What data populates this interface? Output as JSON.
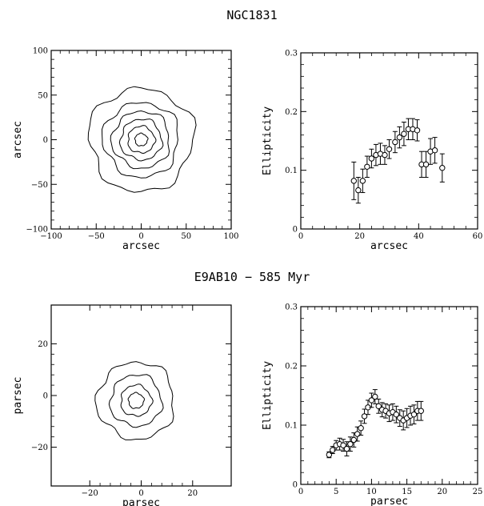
{
  "top_title": "NGC1831",
  "bottom_title": "E9AB10 − 585 Myr",
  "chart_data": [
    {
      "type": "contour",
      "xlabel": "arcsec",
      "ylabel": "arcsec",
      "xlim": [
        -100,
        100
      ],
      "ylim": [
        -100,
        100
      ],
      "xticks": [
        -100,
        -50,
        0,
        50,
        100
      ],
      "yticks": [
        -100,
        -50,
        0,
        50,
        100
      ],
      "center": [
        0,
        0
      ],
      "levels": [
        {
          "r": 7
        },
        {
          "r": 15
        },
        {
          "r": 23
        },
        {
          "r": 32
        },
        {
          "r": 42
        },
        {
          "r": 58
        }
      ]
    },
    {
      "type": "scatter",
      "xlabel": "arcsec",
      "ylabel": "Ellipticity",
      "xlim": [
        0,
        60
      ],
      "ylim": [
        0,
        0.3
      ],
      "xticks": [
        0,
        20,
        40,
        60
      ],
      "yticks": [
        0,
        0.1,
        0.2,
        0.3
      ],
      "points": [
        {
          "x": 18.0,
          "y": 0.082,
          "err": 0.032
        },
        {
          "x": 19.5,
          "y": 0.066,
          "err": 0.022
        },
        {
          "x": 21.0,
          "y": 0.082,
          "err": 0.02
        },
        {
          "x": 22.5,
          "y": 0.106,
          "err": 0.018
        },
        {
          "x": 24.0,
          "y": 0.12,
          "err": 0.016
        },
        {
          "x": 25.5,
          "y": 0.126,
          "err": 0.018
        },
        {
          "x": 27.0,
          "y": 0.128,
          "err": 0.018
        },
        {
          "x": 28.5,
          "y": 0.126,
          "err": 0.016
        },
        {
          "x": 30.0,
          "y": 0.136,
          "err": 0.016
        },
        {
          "x": 32.0,
          "y": 0.148,
          "err": 0.018
        },
        {
          "x": 33.5,
          "y": 0.156,
          "err": 0.018
        },
        {
          "x": 35.0,
          "y": 0.162,
          "err": 0.02
        },
        {
          "x": 36.5,
          "y": 0.17,
          "err": 0.018
        },
        {
          "x": 38.0,
          "y": 0.17,
          "err": 0.018
        },
        {
          "x": 39.5,
          "y": 0.168,
          "err": 0.018
        },
        {
          "x": 41.0,
          "y": 0.11,
          "err": 0.022
        },
        {
          "x": 42.5,
          "y": 0.11,
          "err": 0.022
        },
        {
          "x": 44.0,
          "y": 0.132,
          "err": 0.022
        },
        {
          "x": 45.5,
          "y": 0.134,
          "err": 0.022
        },
        {
          "x": 48.0,
          "y": 0.104,
          "err": 0.024
        }
      ]
    },
    {
      "type": "contour",
      "xlabel": "parsec",
      "ylabel": "parsec",
      "xlim": [
        -35,
        35
      ],
      "ylim": [
        -35,
        35
      ],
      "xticks": [
        -20,
        0,
        20
      ],
      "yticks": [
        -20,
        0,
        20
      ],
      "center": [
        -2,
        -2
      ],
      "levels": [
        {
          "r": 3
        },
        {
          "r": 6
        },
        {
          "r": 10
        },
        {
          "r": 15
        }
      ]
    },
    {
      "type": "scatter",
      "xlabel": "parsec",
      "ylabel": "Ellipticity",
      "xlim": [
        0,
        25
      ],
      "ylim": [
        0,
        0.3
      ],
      "xticks": [
        0,
        5,
        10,
        15,
        20,
        25
      ],
      "yticks": [
        0,
        0.1,
        0.2,
        0.3
      ],
      "points": [
        {
          "x": 4.0,
          "y": 0.05,
          "err": 0.005
        },
        {
          "x": 4.5,
          "y": 0.058,
          "err": 0.006
        },
        {
          "x": 5.0,
          "y": 0.066,
          "err": 0.008
        },
        {
          "x": 5.5,
          "y": 0.068,
          "err": 0.01
        },
        {
          "x": 6.0,
          "y": 0.066,
          "err": 0.01
        },
        {
          "x": 6.5,
          "y": 0.06,
          "err": 0.012
        },
        {
          "x": 7.0,
          "y": 0.068,
          "err": 0.012
        },
        {
          "x": 7.5,
          "y": 0.075,
          "err": 0.012
        },
        {
          "x": 8.0,
          "y": 0.085,
          "err": 0.012
        },
        {
          "x": 8.5,
          "y": 0.095,
          "err": 0.012
        },
        {
          "x": 9.0,
          "y": 0.115,
          "err": 0.012
        },
        {
          "x": 9.5,
          "y": 0.13,
          "err": 0.012
        },
        {
          "x": 10.0,
          "y": 0.142,
          "err": 0.012
        },
        {
          "x": 10.5,
          "y": 0.148,
          "err": 0.012
        },
        {
          "x": 11.0,
          "y": 0.132,
          "err": 0.012
        },
        {
          "x": 11.5,
          "y": 0.126,
          "err": 0.012
        },
        {
          "x": 12.0,
          "y": 0.124,
          "err": 0.012
        },
        {
          "x": 12.5,
          "y": 0.12,
          "err": 0.014
        },
        {
          "x": 13.0,
          "y": 0.122,
          "err": 0.014
        },
        {
          "x": 13.5,
          "y": 0.118,
          "err": 0.014
        },
        {
          "x": 14.0,
          "y": 0.112,
          "err": 0.014
        },
        {
          "x": 14.5,
          "y": 0.108,
          "err": 0.016
        },
        {
          "x": 15.0,
          "y": 0.112,
          "err": 0.016
        },
        {
          "x": 15.5,
          "y": 0.116,
          "err": 0.016
        },
        {
          "x": 16.0,
          "y": 0.118,
          "err": 0.016
        },
        {
          "x": 16.5,
          "y": 0.124,
          "err": 0.016
        },
        {
          "x": 17.0,
          "y": 0.124,
          "err": 0.016
        }
      ]
    }
  ]
}
